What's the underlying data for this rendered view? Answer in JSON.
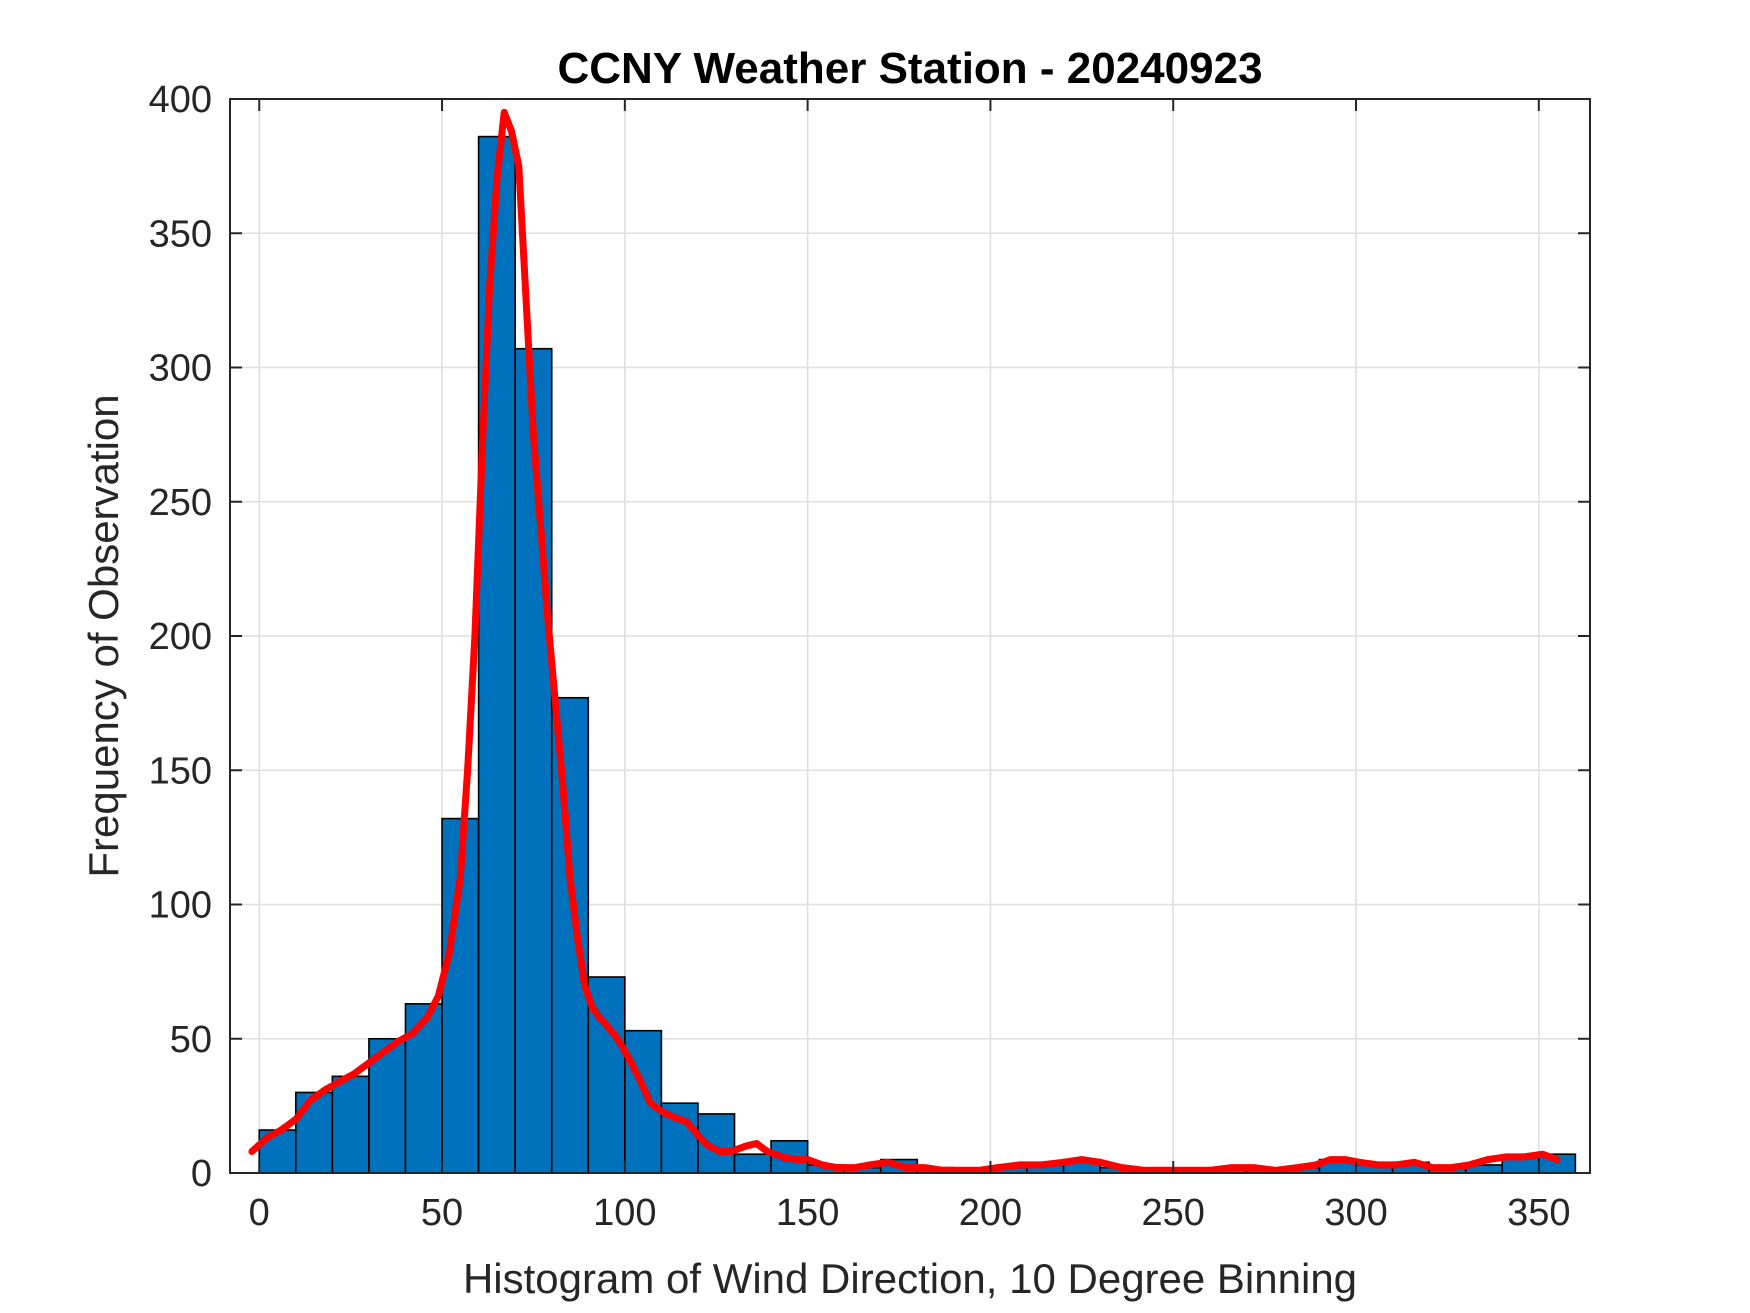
{
  "chart_data": {
    "type": "bar",
    "title": "CCNY Weather Station - 20240923",
    "xlabel": "Histogram of Wind Direction, 10 Degree Binning",
    "ylabel": "Frequency of Observation",
    "xlim": [
      -8,
      364
    ],
    "ylim": [
      0,
      400
    ],
    "xticks": [
      0,
      50,
      100,
      150,
      200,
      250,
      300,
      350
    ],
    "yticks": [
      0,
      50,
      100,
      150,
      200,
      250,
      300,
      350,
      400
    ],
    "grid": true,
    "bin_width": 10,
    "bins": [
      {
        "start": 0,
        "value": 16
      },
      {
        "start": 10,
        "value": 30
      },
      {
        "start": 20,
        "value": 36
      },
      {
        "start": 30,
        "value": 50
      },
      {
        "start": 40,
        "value": 63
      },
      {
        "start": 50,
        "value": 132
      },
      {
        "start": 60,
        "value": 386
      },
      {
        "start": 70,
        "value": 307
      },
      {
        "start": 80,
        "value": 177
      },
      {
        "start": 90,
        "value": 73
      },
      {
        "start": 100,
        "value": 53
      },
      {
        "start": 110,
        "value": 26
      },
      {
        "start": 120,
        "value": 22
      },
      {
        "start": 130,
        "value": 7
      },
      {
        "start": 140,
        "value": 12
      },
      {
        "start": 150,
        "value": 3
      },
      {
        "start": 160,
        "value": 2
      },
      {
        "start": 170,
        "value": 5
      },
      {
        "start": 180,
        "value": 2
      },
      {
        "start": 190,
        "value": 1
      },
      {
        "start": 200,
        "value": 2
      },
      {
        "start": 210,
        "value": 3
      },
      {
        "start": 220,
        "value": 5
      },
      {
        "start": 230,
        "value": 2
      },
      {
        "start": 240,
        "value": 1
      },
      {
        "start": 250,
        "value": 1
      },
      {
        "start": 260,
        "value": 2
      },
      {
        "start": 270,
        "value": 1
      },
      {
        "start": 280,
        "value": 2
      },
      {
        "start": 290,
        "value": 5
      },
      {
        "start": 300,
        "value": 3
      },
      {
        "start": 310,
        "value": 4
      },
      {
        "start": 320,
        "value": 2
      },
      {
        "start": 330,
        "value": 3
      },
      {
        "start": 340,
        "value": 6
      },
      {
        "start": 350,
        "value": 7
      }
    ],
    "fit_curve": {
      "color": "#FF0000",
      "points": [
        [
          -2,
          8
        ],
        [
          2,
          13
        ],
        [
          6,
          16
        ],
        [
          10,
          20
        ],
        [
          14,
          27
        ],
        [
          18,
          31
        ],
        [
          22,
          34
        ],
        [
          26,
          37
        ],
        [
          30,
          41
        ],
        [
          34,
          45
        ],
        [
          38,
          49
        ],
        [
          42,
          52
        ],
        [
          46,
          58
        ],
        [
          49,
          66
        ],
        [
          52,
          82
        ],
        [
          55,
          110
        ],
        [
          57,
          150
        ],
        [
          59,
          200
        ],
        [
          61,
          270
        ],
        [
          63,
          330
        ],
        [
          65,
          370
        ],
        [
          67,
          395
        ],
        [
          69,
          388
        ],
        [
          71,
          375
        ],
        [
          73,
          325
        ],
        [
          75,
          275
        ],
        [
          77,
          240
        ],
        [
          79,
          205
        ],
        [
          81,
          175
        ],
        [
          83,
          145
        ],
        [
          85,
          110
        ],
        [
          87,
          88
        ],
        [
          89,
          70
        ],
        [
          91,
          62
        ],
        [
          93,
          58
        ],
        [
          95,
          55
        ],
        [
          98,
          50
        ],
        [
          101,
          43
        ],
        [
          104,
          35
        ],
        [
          107,
          26
        ],
        [
          110,
          23
        ],
        [
          113,
          21
        ],
        [
          117,
          19
        ],
        [
          120,
          14
        ],
        [
          123,
          10
        ],
        [
          126,
          8
        ],
        [
          129,
          8
        ],
        [
          133,
          10
        ],
        [
          136,
          11
        ],
        [
          139,
          8
        ],
        [
          143,
          6
        ],
        [
          147,
          5
        ],
        [
          150,
          5
        ],
        [
          154,
          3
        ],
        [
          158,
          2
        ],
        [
          163,
          2
        ],
        [
          167,
          3
        ],
        [
          172,
          4
        ],
        [
          177,
          2
        ],
        [
          182,
          2
        ],
        [
          187,
          1
        ],
        [
          192,
          1
        ],
        [
          197,
          1
        ],
        [
          202,
          2
        ],
        [
          208,
          3
        ],
        [
          214,
          3
        ],
        [
          220,
          4
        ],
        [
          225,
          5
        ],
        [
          230,
          4
        ],
        [
          236,
          2
        ],
        [
          242,
          1
        ],
        [
          248,
          1
        ],
        [
          254,
          1
        ],
        [
          260,
          1
        ],
        [
          266,
          2
        ],
        [
          272,
          2
        ],
        [
          278,
          1
        ],
        [
          284,
          2
        ],
        [
          289,
          3
        ],
        [
          293,
          5
        ],
        [
          297,
          5
        ],
        [
          301,
          4
        ],
        [
          306,
          3
        ],
        [
          311,
          3
        ],
        [
          316,
          4
        ],
        [
          321,
          2
        ],
        [
          326,
          2
        ],
        [
          331,
          3
        ],
        [
          336,
          5
        ],
        [
          341,
          6
        ],
        [
          346,
          6
        ],
        [
          351,
          7
        ],
        [
          355,
          5
        ]
      ]
    }
  }
}
